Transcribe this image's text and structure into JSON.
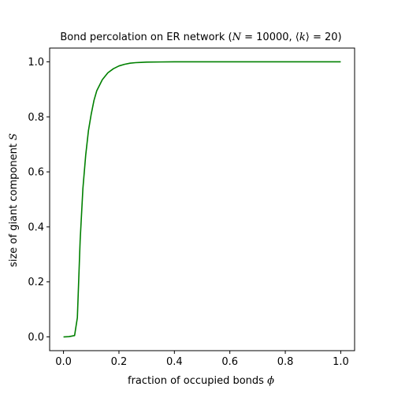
{
  "chart_data": {
    "type": "line",
    "title": {
      "text": "Bond percolation on ER network ",
      "math_parts": [
        "(",
        "N",
        " = 10000, ⟨",
        "k",
        "⟩ = 20)"
      ]
    },
    "xlabel": {
      "text": "fraction of occupied bonds ",
      "symbol": "ϕ"
    },
    "ylabel": {
      "text": "size of giant component ",
      "symbol": "S"
    },
    "xlim": [
      -0.05,
      1.05
    ],
    "ylim": [
      -0.05,
      1.05
    ],
    "xticks": [
      0.0,
      0.2,
      0.4,
      0.6,
      0.8,
      1.0
    ],
    "xtick_labels": [
      "0.0",
      "0.2",
      "0.4",
      "0.6",
      "0.8",
      "1.0"
    ],
    "yticks": [
      0.0,
      0.2,
      0.4,
      0.6,
      0.8,
      1.0
    ],
    "ytick_labels": [
      "0.0",
      "0.2",
      "0.4",
      "0.6",
      "0.8",
      "1.0"
    ],
    "grid": false,
    "series": [
      {
        "color": "#008000",
        "x": [
          0.0,
          0.02,
          0.04,
          0.05,
          0.06,
          0.07,
          0.08,
          0.09,
          0.1,
          0.11,
          0.12,
          0.14,
          0.16,
          0.18,
          0.2,
          0.22,
          0.24,
          0.26,
          0.28,
          0.3,
          0.35,
          0.4,
          0.5,
          0.6,
          0.7,
          0.8,
          0.9,
          1.0
        ],
        "y": [
          0.0,
          0.001,
          0.005,
          0.07,
          0.35,
          0.54,
          0.66,
          0.75,
          0.81,
          0.86,
          0.895,
          0.935,
          0.96,
          0.975,
          0.985,
          0.991,
          0.995,
          0.997,
          0.998,
          0.999,
          0.9995,
          1.0,
          1.0,
          1.0,
          1.0,
          1.0,
          1.0,
          1.0
        ]
      }
    ]
  }
}
